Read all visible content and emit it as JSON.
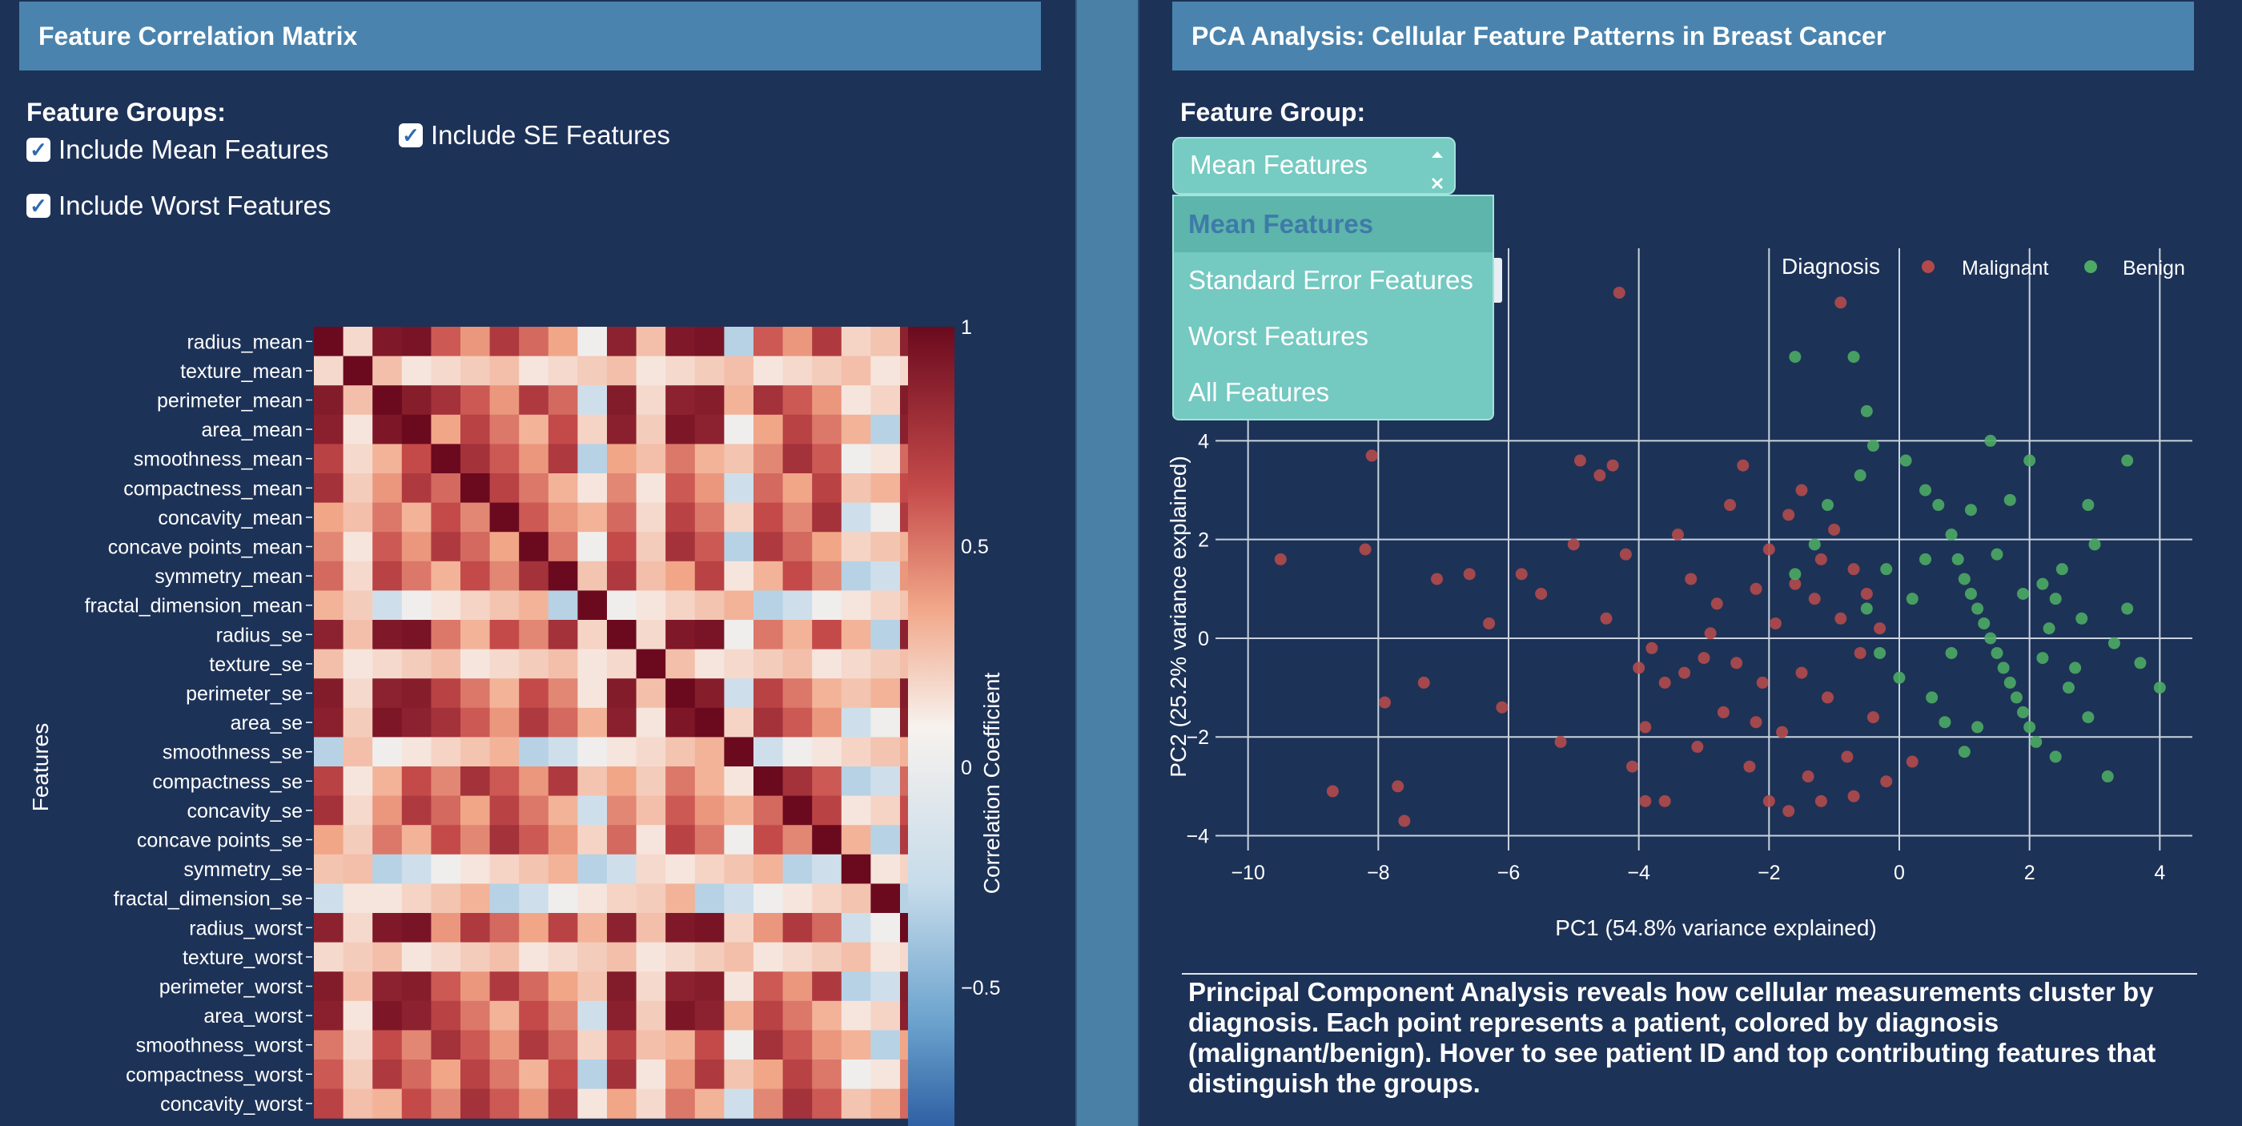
{
  "left_panel": {
    "title": "Feature Correlation Matrix",
    "groups_label": "Feature Groups:",
    "checks": [
      {
        "label": "Include Mean Features",
        "checked": true
      },
      {
        "label": "Include SE Features",
        "checked": true
      },
      {
        "label": "Include Worst Features",
        "checked": true
      }
    ],
    "y_axis_label": "Features"
  },
  "right_panel": {
    "title": "PCA Analysis: Cellular Feature Patterns in Breast Cancer",
    "group_label": "Feature Group:",
    "selected": "Mean Features",
    "options": [
      "Mean Features",
      "Standard Error Features",
      "Worst Features",
      "All Features"
    ],
    "caption": "Principal Component Analysis reveals how cellular measurements cluster by diagnosis. Each point represents a patient, colored by diagnosis (malignant/benign). Hover to see patient ID and top contributing features that distinguish the groups."
  },
  "chart_data": [
    {
      "type": "heatmap",
      "title": "",
      "ylabel": "Features",
      "colorbar_label": "Correlation Coefficient",
      "colorbar_ticks": [
        "1",
        "0.5",
        "0",
        "−0.5"
      ],
      "colorscale": [
        "#2e5fa3",
        "#f7f7f7",
        "#6b0a1e"
      ],
      "rows": [
        "radius_mean",
        "texture_mean",
        "perimeter_mean",
        "area_mean",
        "smoothness_mean",
        "compactness_mean",
        "concavity_mean",
        "concave points_mean",
        "symmetry_mean",
        "fractal_dimension_mean",
        "radius_se",
        "texture_se",
        "perimeter_se",
        "area_se",
        "smoothness_se",
        "compactness_se",
        "concavity_se",
        "concave points_se",
        "symmetry_se",
        "fractal_dimension_se",
        "radius_worst",
        "texture_worst",
        "perimeter_worst",
        "area_worst",
        "smoothness_worst",
        "compactness_worst",
        "concavity_worst"
      ]
    },
    {
      "type": "scatter",
      "title": "",
      "xlabel": "PC1 (54.8% variance explained)",
      "ylabel": "PC2 (25.2% variance explained)",
      "xlim": [
        -10.5,
        4.5
      ],
      "ylim": [
        -4.3,
        7.9
      ],
      "x_ticks": [
        "−10",
        "−8",
        "−6",
        "−4",
        "−2",
        "0",
        "2",
        "4"
      ],
      "y_ticks": [
        "−4",
        "−2",
        "0",
        "2",
        "4"
      ],
      "legend_title": "Diagnosis",
      "legend_position": "top-right",
      "series": [
        {
          "name": "Malignant",
          "color": "#b24a4c",
          "points": [
            [
              -9.5,
              1.6
            ],
            [
              -8.7,
              -3.1
            ],
            [
              -8.2,
              1.8
            ],
            [
              -8.1,
              3.7
            ],
            [
              -7.9,
              -1.3
            ],
            [
              -7.7,
              -3.0
            ],
            [
              -7.6,
              -3.7
            ],
            [
              -7.3,
              -0.9
            ],
            [
              -7.1,
              1.2
            ],
            [
              -6.6,
              1.3
            ],
            [
              -6.3,
              0.3
            ],
            [
              -6.1,
              -1.4
            ],
            [
              -5.8,
              1.3
            ],
            [
              -5.5,
              0.9
            ],
            [
              -5.2,
              -2.1
            ],
            [
              -5.0,
              1.9
            ],
            [
              -4.9,
              3.6
            ],
            [
              -4.6,
              3.3
            ],
            [
              -4.5,
              0.4
            ],
            [
              -4.4,
              3.5
            ],
            [
              -4.2,
              1.7
            ],
            [
              -4.0,
              -0.6
            ],
            [
              -3.9,
              -1.8
            ],
            [
              -3.8,
              -0.2
            ],
            [
              -3.6,
              -3.3
            ],
            [
              -3.6,
              -0.9
            ],
            [
              -3.4,
              2.1
            ],
            [
              -3.2,
              1.2
            ],
            [
              -3.0,
              -0.4
            ],
            [
              -2.8,
              0.7
            ],
            [
              -2.7,
              -1.5
            ],
            [
              -2.6,
              2.7
            ],
            [
              -2.5,
              -0.5
            ],
            [
              -2.4,
              3.5
            ],
            [
              -2.3,
              -2.6
            ],
            [
              -2.2,
              1.0
            ],
            [
              -2.1,
              -0.9
            ],
            [
              -2.0,
              -3.3
            ],
            [
              -1.9,
              0.3
            ],
            [
              -1.8,
              -1.9
            ],
            [
              -1.7,
              2.5
            ],
            [
              -1.6,
              1.1
            ],
            [
              -1.5,
              -0.7
            ],
            [
              -1.4,
              -2.8
            ],
            [
              -1.3,
              0.8
            ],
            [
              -1.2,
              1.6
            ],
            [
              -1.1,
              -1.2
            ],
            [
              -1.0,
              2.2
            ],
            [
              -0.9,
              0.4
            ],
            [
              -0.8,
              -2.4
            ],
            [
              -0.7,
              1.4
            ],
            [
              -0.6,
              -0.3
            ],
            [
              -0.5,
              0.9
            ],
            [
              -0.4,
              -1.6
            ],
            [
              -0.3,
              0.2
            ],
            [
              -0.2,
              -2.9
            ],
            [
              0.2,
              -2.5
            ],
            [
              -3.1,
              -2.2
            ],
            [
              -2.9,
              0.1
            ],
            [
              -2.0,
              1.8
            ],
            [
              -3.9,
              -3.3
            ],
            [
              -1.2,
              -3.3
            ],
            [
              -1.7,
              -3.5
            ],
            [
              -0.9,
              6.8
            ],
            [
              -4.3,
              7.0
            ],
            [
              -4.1,
              -2.6
            ],
            [
              -3.3,
              -0.7
            ],
            [
              -2.2,
              -1.7
            ],
            [
              -1.5,
              3.0
            ],
            [
              -0.7,
              -3.2
            ]
          ]
        },
        {
          "name": "Benign",
          "color": "#4daa64",
          "points": [
            [
              -1.6,
              5.7
            ],
            [
              -0.7,
              5.7
            ],
            [
              -0.5,
              4.6
            ],
            [
              -0.4,
              3.9
            ],
            [
              0.1,
              3.6
            ],
            [
              0.4,
              3.0
            ],
            [
              0.6,
              2.7
            ],
            [
              0.8,
              2.1
            ],
            [
              0.9,
              1.6
            ],
            [
              1.0,
              1.2
            ],
            [
              1.1,
              0.9
            ],
            [
              1.2,
              0.6
            ],
            [
              1.3,
              0.3
            ],
            [
              1.4,
              0.0
            ],
            [
              1.5,
              -0.3
            ],
            [
              1.6,
              -0.6
            ],
            [
              1.7,
              -0.9
            ],
            [
              1.8,
              -1.2
            ],
            [
              1.9,
              -1.5
            ],
            [
              2.0,
              -1.8
            ],
            [
              2.1,
              -2.1
            ],
            [
              2.2,
              -0.4
            ],
            [
              2.3,
              0.2
            ],
            [
              2.4,
              0.8
            ],
            [
              2.5,
              1.4
            ],
            [
              2.6,
              -1.0
            ],
            [
              2.7,
              -0.6
            ],
            [
              2.8,
              0.4
            ],
            [
              2.9,
              -1.6
            ],
            [
              3.0,
              1.9
            ],
            [
              3.2,
              -2.8
            ],
            [
              3.3,
              -0.1
            ],
            [
              3.5,
              0.6
            ],
            [
              3.7,
              -0.5
            ],
            [
              4.0,
              -1.0
            ],
            [
              1.4,
              4.0
            ],
            [
              2.0,
              3.6
            ],
            [
              1.7,
              2.8
            ],
            [
              0.4,
              1.6
            ],
            [
              0.2,
              0.8
            ],
            [
              0.0,
              -0.8
            ],
            [
              -0.2,
              1.4
            ],
            [
              -0.3,
              -0.3
            ],
            [
              -0.5,
              0.6
            ],
            [
              1.0,
              -2.3
            ],
            [
              1.2,
              -1.8
            ],
            [
              0.5,
              -1.2
            ],
            [
              0.8,
              -0.3
            ],
            [
              2.4,
              -2.4
            ],
            [
              2.9,
              2.7
            ],
            [
              3.5,
              3.6
            ],
            [
              -0.6,
              3.3
            ],
            [
              -1.1,
              2.7
            ],
            [
              -1.3,
              1.9
            ],
            [
              -1.6,
              1.3
            ],
            [
              1.5,
              1.7
            ],
            [
              1.9,
              0.9
            ],
            [
              2.2,
              1.1
            ],
            [
              1.1,
              2.6
            ],
            [
              0.7,
              -1.7
            ]
          ]
        }
      ]
    }
  ]
}
